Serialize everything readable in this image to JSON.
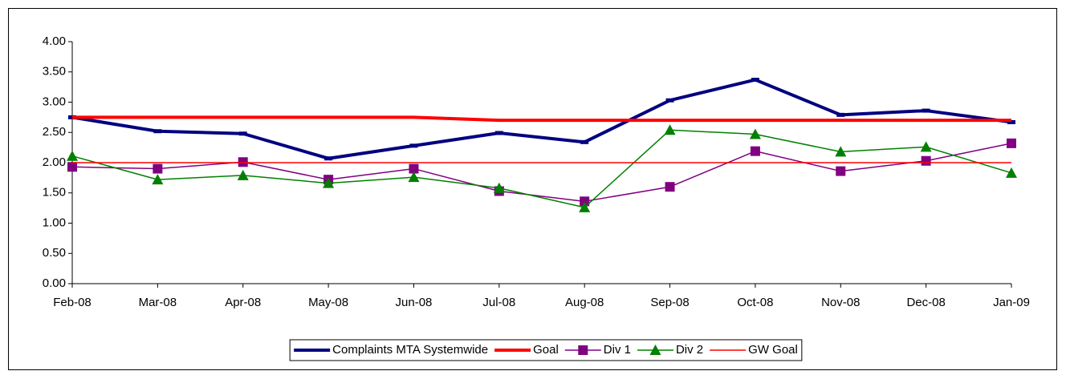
{
  "chart_data": {
    "type": "line",
    "categories": [
      "Feb-08",
      "Mar-08",
      "Apr-08",
      "May-08",
      "Jun-08",
      "Jul-08",
      "Aug-08",
      "Sep-08",
      "Oct-08",
      "Nov-08",
      "Dec-08",
      "Jan-09"
    ],
    "series": [
      {
        "name": "Complaints MTA Systemwide",
        "color": "#000080",
        "width": 4,
        "marker": "dash",
        "values": [
          2.75,
          2.52,
          2.48,
          2.07,
          2.28,
          2.49,
          2.34,
          3.03,
          3.37,
          2.79,
          2.86,
          2.67
        ]
      },
      {
        "name": "Goal",
        "color": "#ff0000",
        "width": 4,
        "marker": "none",
        "values": [
          2.75,
          2.75,
          2.75,
          2.75,
          2.75,
          2.7,
          2.7,
          2.7,
          2.7,
          2.7,
          2.7,
          2.7
        ]
      },
      {
        "name": "Div 1",
        "color": "#800080",
        "width": 1.5,
        "marker": "square",
        "values": [
          1.93,
          1.9,
          2.01,
          1.72,
          1.9,
          1.53,
          1.36,
          1.6,
          2.19,
          1.86,
          2.03,
          2.32
        ]
      },
      {
        "name": "Div 2",
        "color": "#008000",
        "width": 1.5,
        "marker": "triangle",
        "values": [
          2.11,
          1.72,
          1.79,
          1.66,
          1.76,
          1.58,
          1.26,
          2.54,
          2.47,
          2.18,
          2.26,
          1.83
        ]
      },
      {
        "name": "GW Goal",
        "color": "#ff0000",
        "width": 1.5,
        "marker": "none",
        "values": [
          2,
          2,
          2,
          2,
          2,
          2,
          2,
          2,
          2,
          2,
          2,
          2
        ]
      }
    ],
    "ylim": [
      0,
      4
    ],
    "yticks": [
      {
        "value": 0,
        "label": "0.00"
      },
      {
        "value": 0.5,
        "label": "0.50"
      },
      {
        "value": 1,
        "label": "1.00"
      },
      {
        "value": 1.5,
        "label": "1.50"
      },
      {
        "value": 2,
        "label": "2.00"
      },
      {
        "value": 2.5,
        "label": "2.50"
      },
      {
        "value": 3,
        "label": "3.00"
      },
      {
        "value": 3.5,
        "label": "3.50"
      },
      {
        "value": 4,
        "label": "4.00"
      }
    ],
    "grid": false,
    "legend": "bottom"
  }
}
